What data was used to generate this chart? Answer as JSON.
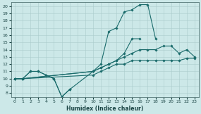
{
  "xlabel": "Humidex (Indice chaleur)",
  "bg_color": "#cce8e8",
  "line_color": "#1a6b6b",
  "xlim": [
    -0.5,
    23.5
  ],
  "ylim": [
    7.5,
    20.5
  ],
  "xticks": [
    0,
    1,
    2,
    3,
    4,
    5,
    6,
    7,
    8,
    9,
    10,
    11,
    12,
    13,
    14,
    15,
    16,
    17,
    18,
    19,
    20,
    21,
    22,
    23
  ],
  "yticks": [
    8,
    9,
    10,
    11,
    12,
    13,
    14,
    15,
    16,
    17,
    18,
    19,
    20
  ],
  "lines": [
    {
      "x": [
        0,
        1,
        2,
        3,
        4,
        5,
        6,
        7
      ],
      "y": [
        10,
        10,
        11,
        11,
        10.5,
        10,
        7.5,
        8.5
      ]
    },
    {
      "x": [
        0,
        1,
        2,
        3,
        4,
        5,
        6,
        7,
        10,
        11,
        12,
        13,
        14,
        15,
        16,
        17,
        18
      ],
      "y": [
        10,
        10,
        11,
        11,
        10.5,
        10,
        7.5,
        8.5,
        11,
        12,
        16.5,
        17,
        19.2,
        19.5,
        20.2,
        20.2,
        15.5
      ]
    },
    {
      "x": [
        0,
        1,
        10,
        11,
        12,
        13,
        14,
        15,
        16
      ],
      "y": [
        10,
        10,
        11,
        11.5,
        12,
        12.5,
        13.5,
        15.5,
        15.5
      ]
    },
    {
      "x": [
        0,
        1,
        10,
        11,
        12,
        13,
        14,
        15,
        16,
        17,
        18,
        19,
        20,
        21,
        22,
        23
      ],
      "y": [
        10,
        10,
        11,
        11.5,
        12,
        12.5,
        13,
        13.5,
        14,
        14,
        14,
        14.5,
        14.5,
        13.5,
        14,
        13
      ]
    },
    {
      "x": [
        0,
        1,
        10,
        11,
        12,
        13,
        14,
        15,
        16,
        17,
        18,
        19,
        20,
        21,
        22,
        23
      ],
      "y": [
        10,
        10,
        10.5,
        11,
        11.5,
        12,
        12,
        12.5,
        12.5,
        12.5,
        12.5,
        12.5,
        12.5,
        12.5,
        12.8,
        12.8
      ]
    }
  ]
}
